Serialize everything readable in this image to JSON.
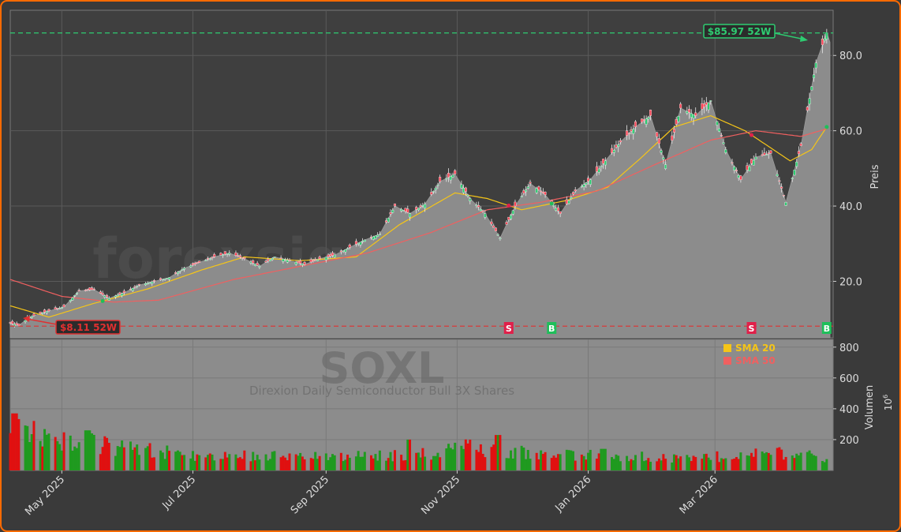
{
  "chart_data": [
    {
      "type": "candlestick",
      "panel": "price",
      "title": "SOXL",
      "subtitle": "Direxion Daily Semiconductor Bull 3X Shares",
      "watermark": "forexsignale.trade",
      "ylabel": "Preis",
      "ylim": [
        5,
        92
      ],
      "yticks": [
        20,
        40,
        60,
        80
      ],
      "ytick_labels": [
        "20.0",
        "40.0",
        "60.0",
        "80.0"
      ],
      "grid": true,
      "x_start": "2025-04-07",
      "x_end": "2026-04-25",
      "xticks": [
        "2025-05-01",
        "2025-07-01",
        "2025-09-01",
        "2025-11-01",
        "2026-01-01",
        "2026-03-01"
      ],
      "xtick_labels": [
        "May 2025",
        "Jul 2025",
        "Sep 2025",
        "Nov 2025",
        "Jan 2026",
        "Mar 2026"
      ],
      "close_points": [
        {
          "date": "2025-04-07",
          "value": 8.9
        },
        {
          "date": "2025-04-11",
          "value": 8.3
        },
        {
          "date": "2025-04-16",
          "value": 10.5
        },
        {
          "date": "2025-04-24",
          "value": 12.0
        },
        {
          "date": "2025-05-02",
          "value": 13.2
        },
        {
          "date": "2025-05-09",
          "value": 17.5
        },
        {
          "date": "2025-05-16",
          "value": 17.8
        },
        {
          "date": "2025-05-23",
          "value": 15.5
        },
        {
          "date": "2025-05-30",
          "value": 17.0
        },
        {
          "date": "2025-06-06",
          "value": 19.0
        },
        {
          "date": "2025-06-13",
          "value": 20.0
        },
        {
          "date": "2025-06-20",
          "value": 21.0
        },
        {
          "date": "2025-06-27",
          "value": 23.5
        },
        {
          "date": "2025-07-04",
          "value": 25.0
        },
        {
          "date": "2025-07-11",
          "value": 26.5
        },
        {
          "date": "2025-07-18",
          "value": 27.5
        },
        {
          "date": "2025-07-25",
          "value": 26.0
        },
        {
          "date": "2025-08-01",
          "value": 24.0
        },
        {
          "date": "2025-08-08",
          "value": 26.5
        },
        {
          "date": "2025-08-15",
          "value": 25.5
        },
        {
          "date": "2025-08-22",
          "value": 24.5
        },
        {
          "date": "2025-08-29",
          "value": 26.0
        },
        {
          "date": "2025-09-05",
          "value": 27.0
        },
        {
          "date": "2025-09-12",
          "value": 29.0
        },
        {
          "date": "2025-09-19",
          "value": 31.0
        },
        {
          "date": "2025-09-26",
          "value": 32.5
        },
        {
          "date": "2025-10-03",
          "value": 40.0
        },
        {
          "date": "2025-10-10",
          "value": 38.0
        },
        {
          "date": "2025-10-17",
          "value": 40.5
        },
        {
          "date": "2025-10-24",
          "value": 46.5
        },
        {
          "date": "2025-10-31",
          "value": 48.5
        },
        {
          "date": "2025-11-07",
          "value": 42.0
        },
        {
          "date": "2025-11-14",
          "value": 38.0
        },
        {
          "date": "2025-11-21",
          "value": 31.5
        },
        {
          "date": "2025-11-28",
          "value": 40.0
        },
        {
          "date": "2025-12-05",
          "value": 46.0
        },
        {
          "date": "2025-12-12",
          "value": 43.0
        },
        {
          "date": "2025-12-19",
          "value": 38.0
        },
        {
          "date": "2025-12-26",
          "value": 44.0
        },
        {
          "date": "2026-01-02",
          "value": 47.0
        },
        {
          "date": "2026-01-09",
          "value": 52.0
        },
        {
          "date": "2026-01-16",
          "value": 57.0
        },
        {
          "date": "2026-01-23",
          "value": 61.0
        },
        {
          "date": "2026-01-30",
          "value": 64.0
        },
        {
          "date": "2026-02-06",
          "value": 51.0
        },
        {
          "date": "2026-02-13",
          "value": 66.0
        },
        {
          "date": "2026-02-20",
          "value": 64.0
        },
        {
          "date": "2026-02-27",
          "value": 68.0
        },
        {
          "date": "2026-03-06",
          "value": 55.0
        },
        {
          "date": "2026-03-13",
          "value": 47.0
        },
        {
          "date": "2026-03-20",
          "value": 53.0
        },
        {
          "date": "2026-03-27",
          "value": 54.0
        },
        {
          "date": "2026-04-03",
          "value": 41.0
        },
        {
          "date": "2026-04-10",
          "value": 56.0
        },
        {
          "date": "2026-04-17",
          "value": 78.0
        },
        {
          "date": "2026-04-22",
          "value": 86.0
        }
      ],
      "sma20": [
        {
          "date": "2025-04-07",
          "value": 13.5
        },
        {
          "date": "2025-04-25",
          "value": 10.5
        },
        {
          "date": "2025-05-15",
          "value": 14.0
        },
        {
          "date": "2025-06-10",
          "value": 18.0
        },
        {
          "date": "2025-07-05",
          "value": 23.0
        },
        {
          "date": "2025-07-25",
          "value": 26.5
        },
        {
          "date": "2025-08-20",
          "value": 25.5
        },
        {
          "date": "2025-09-15",
          "value": 26.5
        },
        {
          "date": "2025-10-05",
          "value": 35.0
        },
        {
          "date": "2025-10-31",
          "value": 43.5
        },
        {
          "date": "2025-11-15",
          "value": 42.0
        },
        {
          "date": "2025-12-01",
          "value": 39.0
        },
        {
          "date": "2025-12-22",
          "value": 41.5
        },
        {
          "date": "2026-01-10",
          "value": 45.0
        },
        {
          "date": "2026-01-25",
          "value": 52.5
        },
        {
          "date": "2026-02-10",
          "value": 61.0
        },
        {
          "date": "2026-02-27",
          "value": 64.0
        },
        {
          "date": "2026-03-15",
          "value": 60.0
        },
        {
          "date": "2026-04-05",
          "value": 52.0
        },
        {
          "date": "2026-04-15",
          "value": 55.0
        },
        {
          "date": "2026-04-22",
          "value": 61.0
        }
      ],
      "sma50": [
        {
          "date": "2025-04-07",
          "value": 20.5
        },
        {
          "date": "2025-05-01",
          "value": 16.0
        },
        {
          "date": "2025-05-25",
          "value": 14.5
        },
        {
          "date": "2025-06-15",
          "value": 15.0
        },
        {
          "date": "2025-07-20",
          "value": 20.5
        },
        {
          "date": "2025-08-20",
          "value": 24.0
        },
        {
          "date": "2025-09-20",
          "value": 27.5
        },
        {
          "date": "2025-10-20",
          "value": 33.0
        },
        {
          "date": "2025-11-15",
          "value": 39.0
        },
        {
          "date": "2025-12-10",
          "value": 41.0
        },
        {
          "date": "2026-01-05",
          "value": 44.0
        },
        {
          "date": "2026-02-01",
          "value": 51.0
        },
        {
          "date": "2026-02-27",
          "value": 57.5
        },
        {
          "date": "2026-03-20",
          "value": 60.0
        },
        {
          "date": "2026-04-10",
          "value": 58.5
        },
        {
          "date": "2026-04-22",
          "value": 60.5
        }
      ],
      "high_52w": {
        "value": 85.97,
        "label": "$85.97 52W",
        "color": "#2ecc71"
      },
      "low_52w": {
        "value": 8.11,
        "label": "$8.11 52W",
        "color": "#e03030"
      },
      "signals": [
        {
          "date": "2025-05-20",
          "type": "B",
          "label": "B"
        },
        {
          "date": "2025-11-25",
          "type": "S",
          "label": "S"
        },
        {
          "date": "2025-12-15",
          "type": "B",
          "label": "B"
        },
        {
          "date": "2026-03-18",
          "type": "S",
          "label": "S"
        },
        {
          "date": "2026-04-22",
          "type": "B",
          "label": "B"
        }
      ],
      "legend": [
        {
          "label": "SMA 20",
          "color": "#f5c518"
        },
        {
          "label": "SMA 50",
          "color": "#f06060"
        }
      ],
      "colors": {
        "up": "#2ecc71",
        "down": "#ff4455",
        "sma20": "#f5c518",
        "sma50": "#f06060",
        "area": "#8c8c8c"
      }
    },
    {
      "type": "bar",
      "panel": "volume",
      "ylabel": "Volumen",
      "yunit": "10^6",
      "yunit_base": "10",
      "yunit_exp": "6",
      "ylim": [
        0,
        850
      ],
      "yticks": [
        200,
        400,
        600,
        800
      ],
      "ytick_labels": [
        "200",
        "400",
        "600",
        "800"
      ],
      "legend_position": "top-right",
      "volume_profile": [
        {
          "date": "2025-04-07",
          "value": 380
        },
        {
          "date": "2025-04-14",
          "value": 260
        },
        {
          "date": "2025-04-25",
          "value": 200
        },
        {
          "date": "2025-05-09",
          "value": 210
        },
        {
          "date": "2025-05-23",
          "value": 150
        },
        {
          "date": "2025-06-10",
          "value": 130
        },
        {
          "date": "2025-07-01",
          "value": 100
        },
        {
          "date": "2025-08-01",
          "value": 95
        },
        {
          "date": "2025-09-01",
          "value": 90
        },
        {
          "date": "2025-10-01",
          "value": 95
        },
        {
          "date": "2025-10-20",
          "value": 110
        },
        {
          "date": "2025-11-05",
          "value": 150
        },
        {
          "date": "2025-11-20",
          "value": 130
        },
        {
          "date": "2025-12-15",
          "value": 110
        },
        {
          "date": "2026-01-10",
          "value": 90
        },
        {
          "date": "2026-02-10",
          "value": 85
        },
        {
          "date": "2026-03-10",
          "value": 90
        },
        {
          "date": "2026-04-05",
          "value": 120
        },
        {
          "date": "2026-04-22",
          "value": 70
        }
      ],
      "volume_spikes": [
        {
          "date": "2025-04-09",
          "value": 370
        },
        {
          "date": "2025-05-13",
          "value": 260
        },
        {
          "date": "2025-10-10",
          "value": 200
        },
        {
          "date": "2025-11-20",
          "value": 230
        },
        {
          "date": "2026-01-08",
          "value": 140
        }
      ]
    }
  ]
}
